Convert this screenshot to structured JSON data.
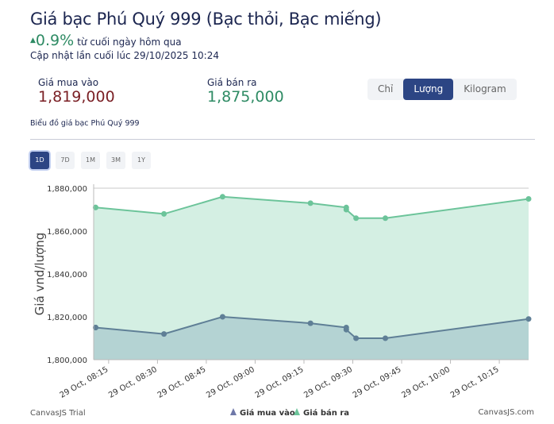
{
  "header": {
    "title": "Giá bạc Phú Quý 999 (Bạc thỏi, Bạc miếng)",
    "change_icon": "triangle-up-icon",
    "change_value": "0.9%",
    "change_text": "từ cuối ngày hôm qua",
    "updated": "Cập nhật lần cuối lúc 29/10/2025 10:24"
  },
  "prices": {
    "buy_label": "Giá mua vào",
    "buy_value": "1,819,000",
    "sell_label": "Giá bán ra",
    "sell_value": "1,875,000"
  },
  "units": {
    "items": [
      "Chỉ",
      "Lượng",
      "Kilogram"
    ],
    "active": "Lượng"
  },
  "chart_caption": "Biểu đồ giá bạc Phú Quý 999",
  "ranges": {
    "items": [
      "1D",
      "7D",
      "1M",
      "3M",
      "1Y"
    ],
    "active": "1D"
  },
  "colors": {
    "buy": "#5f7f96",
    "buy_fill": "#b4d3d3",
    "sell": "#6cc49a",
    "sell_fill": "#d4efe3",
    "accent": "#2c4584"
  },
  "chart_data": {
    "type": "area",
    "ylabel": "Giá vnd/lượng",
    "ylim": [
      1800000,
      1880000
    ],
    "yticks": [
      "1,800,000",
      "1,820,000",
      "1,840,000",
      "1,860,000",
      "1,880,000"
    ],
    "xlim": [
      "08:10",
      "10:24"
    ],
    "xticks": [
      "29 Oct, 08:15",
      "29 Oct, 08:30",
      "29 Oct, 08:45",
      "29 Oct, 09:00",
      "29 Oct, 09:15",
      "29 Oct, 09:30",
      "29 Oct, 09:45",
      "29 Oct, 10:00",
      "29 Oct, 10:15"
    ],
    "grid": true,
    "legend_position": "bottom",
    "x": [
      "08:11",
      "08:11",
      "08:32",
      "08:50",
      "09:17",
      "09:28",
      "09:28",
      "09:31",
      "09:40",
      "10:24"
    ],
    "series": [
      {
        "name": "Giá mua vào",
        "values": [
          1815000,
          1815000,
          1812000,
          1820000,
          1817000,
          1815000,
          1814000,
          1810000,
          1810000,
          1819000
        ]
      },
      {
        "name": "Giá bán ra",
        "values": [
          1871000,
          1871000,
          1868000,
          1876000,
          1873000,
          1871000,
          1870000,
          1866000,
          1866000,
          1875000
        ]
      }
    ],
    "watermark_left": "CanvasJS Trial",
    "watermark_right": "CanvasJS.com"
  }
}
